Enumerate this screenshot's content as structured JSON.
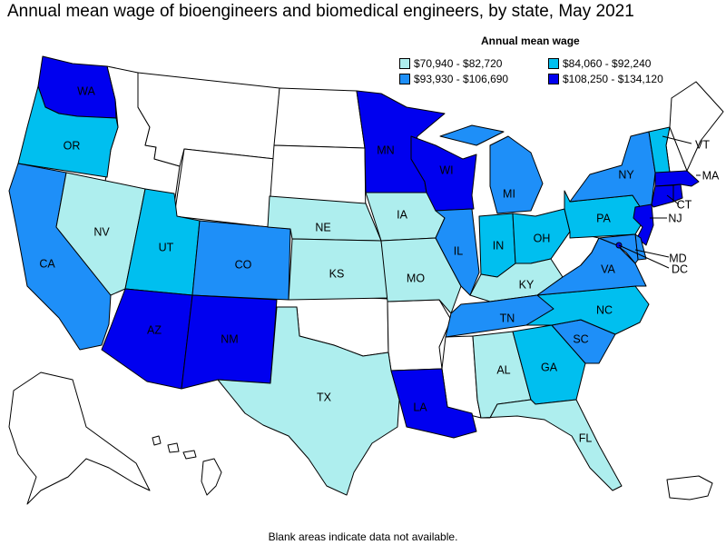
{
  "title": "Annual mean wage of bioengineers and biomedical engineers, by state, May 2021",
  "legend": {
    "title": "Annual mean wage",
    "items": [
      {
        "label": "$70,940 - $82,720",
        "color": "#aeeeee"
      },
      {
        "label": "$84,060 - $92,240",
        "color": "#00bfef"
      },
      {
        "label": "$93,930 - $106,690",
        "color": "#1e8ff8"
      },
      {
        "label": "$108,250 - $134,120",
        "color": "#0000ef"
      }
    ]
  },
  "colors": {
    "nodata": "#ffffff",
    "border": "#000000"
  },
  "footnote": "Blank areas indicate data not available.",
  "states": {
    "WA": {
      "label": "WA",
      "tier": 3
    },
    "OR": {
      "label": "OR",
      "tier": 1
    },
    "CA": {
      "label": "CA",
      "tier": 2
    },
    "NV": {
      "label": "NV",
      "tier": 0
    },
    "ID": {
      "label": "",
      "tier": null
    },
    "MT": {
      "label": "",
      "tier": null
    },
    "WY": {
      "label": "",
      "tier": null
    },
    "UT": {
      "label": "UT",
      "tier": 1
    },
    "AZ": {
      "label": "AZ",
      "tier": 3
    },
    "CO": {
      "label": "CO",
      "tier": 2
    },
    "NM": {
      "label": "NM",
      "tier": 3
    },
    "ND": {
      "label": "",
      "tier": null
    },
    "SD": {
      "label": "",
      "tier": null
    },
    "NE": {
      "label": "NE",
      "tier": 0
    },
    "KS": {
      "label": "KS",
      "tier": 0
    },
    "OK": {
      "label": "",
      "tier": null
    },
    "TX": {
      "label": "TX",
      "tier": 0
    },
    "MN": {
      "label": "MN",
      "tier": 3
    },
    "IA": {
      "label": "IA",
      "tier": 0
    },
    "MO": {
      "label": "MO",
      "tier": 0
    },
    "AR": {
      "label": "",
      "tier": null
    },
    "LA": {
      "label": "LA",
      "tier": 3
    },
    "WI": {
      "label": "WI",
      "tier": 3
    },
    "IL": {
      "label": "IL",
      "tier": 2
    },
    "MS": {
      "label": "",
      "tier": null
    },
    "MI": {
      "label": "MI",
      "tier": 2
    },
    "IN": {
      "label": "IN",
      "tier": 1
    },
    "OH": {
      "label": "OH",
      "tier": 1
    },
    "KY": {
      "label": "KY",
      "tier": 0
    },
    "TN": {
      "label": "TN",
      "tier": 2
    },
    "AL": {
      "label": "AL",
      "tier": 0
    },
    "GA": {
      "label": "GA",
      "tier": 1
    },
    "FL": {
      "label": "FL",
      "tier": 0
    },
    "SC": {
      "label": "SC",
      "tier": 2
    },
    "NC": {
      "label": "NC",
      "tier": 1
    },
    "VA": {
      "label": "VA",
      "tier": 2
    },
    "WV": {
      "label": "",
      "tier": null
    },
    "PA": {
      "label": "PA",
      "tier": 1
    },
    "NY": {
      "label": "NY",
      "tier": 2
    },
    "VT": {
      "label": "VT",
      "tier": 1
    },
    "NH": {
      "label": "",
      "tier": null
    },
    "ME": {
      "label": "",
      "tier": null
    },
    "MA": {
      "label": "MA",
      "tier": 3
    },
    "CT": {
      "label": "CT",
      "tier": 3
    },
    "RI": {
      "label": "",
      "tier": 3
    },
    "NJ": {
      "label": "NJ",
      "tier": 3
    },
    "DE": {
      "label": "",
      "tier": 2
    },
    "MD": {
      "label": "MD",
      "tier": 2
    },
    "DC": {
      "label": "DC",
      "tier": 3
    },
    "AK": {
      "label": "",
      "tier": null
    },
    "HI": {
      "label": "",
      "tier": null
    },
    "PR": {
      "label": "",
      "tier": null
    }
  }
}
